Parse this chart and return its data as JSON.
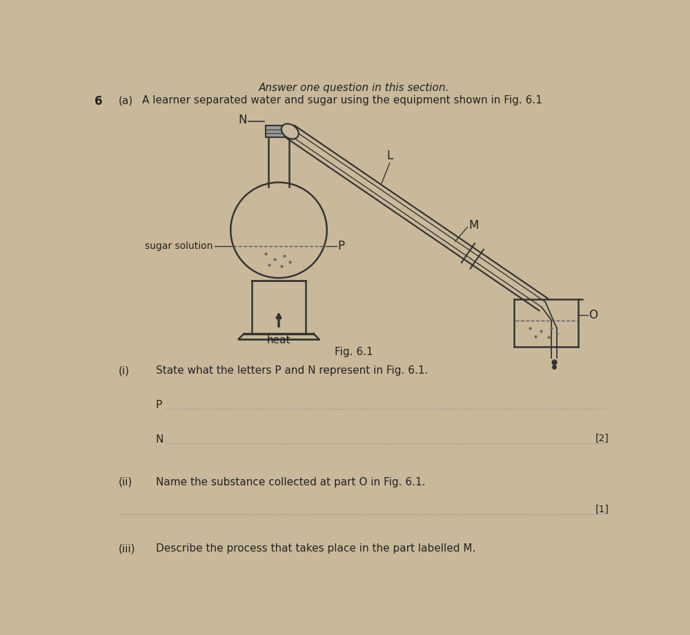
{
  "background_color": "#c9b99a",
  "page_title_top": "Answer one question in this section.",
  "question_number": "6",
  "question_label": "(a)",
  "question_text": "A learner separated water and sugar using the equipment shown in Fig. 6.1",
  "fig_label": "Fig. 6.1",
  "sub_questions": [
    {
      "label": "(i)",
      "text": "State what the letters P and N represent in Fig. 6.1.",
      "mark": "[2]"
    },
    {
      "label": "(ii)",
      "text": "Name the substance collected at part O in Fig. 6.1.",
      "mark": "[1]"
    },
    {
      "label": "(iii)",
      "text": "Describe the process that takes place in the part labelled M."
    }
  ]
}
